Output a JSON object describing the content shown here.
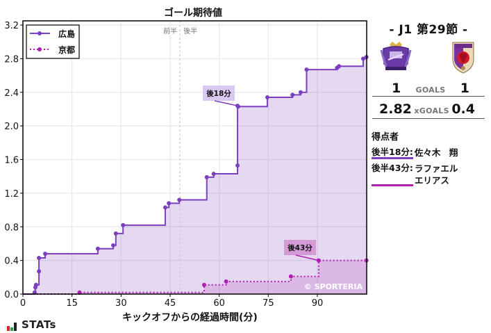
{
  "chart_title": "ゴール期待値",
  "round_label": "- J1 第29節 -",
  "teams": {
    "home": {
      "name": "広島",
      "color": "#7b3fbf",
      "goals": "1",
      "xgoals": "2.82"
    },
    "away": {
      "name": "京都",
      "color": "#b01fb0",
      "goals": "1",
      "xgoals": "0.4"
    }
  },
  "stats": {
    "goals_label": "GOALS",
    "xgoals_label": "xGOALS"
  },
  "scorers": {
    "title": "得点者",
    "items": [
      {
        "time": "後半18分:",
        "name": "佐々木　翔",
        "team": "home"
      },
      {
        "time": "後半43分:",
        "name": "ラファエル\nエリアス",
        "name_line1": "ラファエル",
        "name_line2": "エリアス",
        "team": "away"
      }
    ]
  },
  "half_labels": {
    "first": "前半",
    "second": "後半"
  },
  "annotations": [
    {
      "label": "後18分",
      "team": "home"
    },
    {
      "label": "後43分",
      "team": "away"
    }
  ],
  "watermark": "© SPORTERIA",
  "brand": "STATs",
  "chart_data": {
    "type": "line",
    "title": "ゴール期待値",
    "xlabel": "キックオフからの経過時間(分)",
    "ylabel": "",
    "xlim": [
      0,
      105
    ],
    "ylim": [
      0,
      3.25
    ],
    "x_ticks": [
      0,
      15,
      30,
      45,
      60,
      75,
      90
    ],
    "y_ticks": [
      0.0,
      0.4,
      0.8,
      1.2,
      1.6,
      2.0,
      2.4,
      2.8,
      3.2
    ],
    "y_tick_labels": [
      "0.0",
      "0.4",
      "0.8",
      "1.2",
      "1.6",
      "2.0",
      "2.4",
      "2.8",
      "3.2"
    ],
    "grid": true,
    "legend_position": "upper left",
    "halftime_line_x": 48,
    "step": true,
    "series": [
      {
        "name": "広島",
        "style": "solid",
        "color": "#7b3fbf",
        "x": [
          0,
          3.6,
          3.8,
          4.0,
          4.9,
          4.9,
          6.8,
          22.9,
          27.6,
          28.4,
          30.6,
          43.5,
          44.6,
          47.8,
          56.2,
          58.3,
          65.6,
          65.6,
          65.8,
          74.7,
          82.4,
          84.9,
          86.7,
          96.0,
          96.6,
          104.0,
          105.0
        ],
        "y": [
          0,
          0.02,
          0.08,
          0.11,
          0.27,
          0.43,
          0.48,
          0.54,
          0.58,
          0.72,
          0.82,
          1.03,
          1.08,
          1.12,
          1.39,
          1.43,
          1.53,
          2.24,
          2.23,
          2.34,
          2.37,
          2.4,
          2.67,
          2.69,
          2.71,
          2.8,
          2.82
        ]
      },
      {
        "name": "京都",
        "style": "dotted",
        "color": "#b01fb0",
        "x": [
          0,
          17.3,
          55.4,
          62.1,
          81.9,
          90.4,
          105.0
        ],
        "y": [
          0,
          0.02,
          0.11,
          0.15,
          0.21,
          0.4,
          0.4
        ]
      }
    ],
    "goal_annotations": [
      {
        "series": "広島",
        "label": "後18分",
        "x": 65.6,
        "y": 2.24
      },
      {
        "series": "京都",
        "label": "後43分",
        "x": 90.4,
        "y": 0.4
      }
    ]
  }
}
